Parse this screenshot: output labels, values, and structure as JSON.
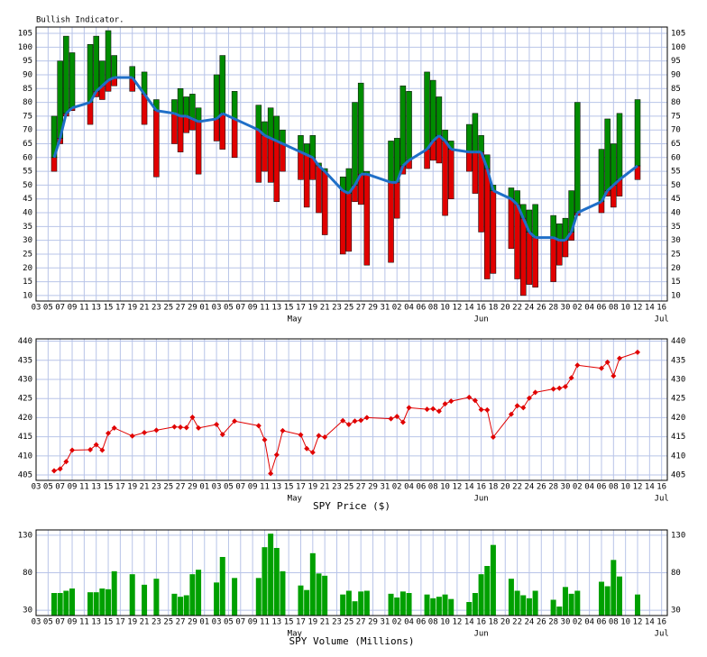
{
  "chart_data": [
    {
      "type": "range-bar",
      "title": "Bullish Indicator.",
      "categories": [
        "03",
        null,
        "05",
        null,
        "07",
        null,
        "09",
        null,
        "11",
        null,
        "13",
        null,
        "15",
        null,
        "17",
        null,
        "19",
        null,
        "21",
        null,
        "23",
        null,
        "25",
        null,
        "27",
        null,
        "29",
        null,
        "01",
        null,
        "03",
        null,
        "05",
        null,
        "07",
        null,
        "09",
        null,
        "11",
        null,
        "13",
        null,
        "15",
        null,
        "17",
        null,
        "19",
        null,
        "21",
        null,
        "23",
        null,
        "25",
        null,
        "27",
        null,
        "29",
        null,
        "31",
        null,
        "02",
        null,
        "04",
        null,
        "06",
        null,
        "08",
        null,
        "10",
        null,
        "12",
        null,
        "14",
        null,
        "16",
        null,
        "18",
        null,
        "20",
        null,
        "22",
        null,
        "24",
        null,
        "26",
        null,
        "28",
        null,
        "30",
        null,
        "02",
        null,
        "04",
        null,
        "06",
        null,
        "08",
        null,
        "10",
        null,
        "12",
        null,
        "14",
        null,
        "16"
      ],
      "month_labels": [
        "May",
        "Jun",
        "Jul"
      ],
      "low": [
        null,
        null,
        null,
        55,
        65,
        75,
        77,
        null,
        null,
        72,
        82,
        81,
        84,
        86,
        null,
        null,
        84,
        null,
        72,
        null,
        53,
        null,
        null,
        65,
        62,
        69,
        70,
        54,
        null,
        null,
        66,
        63,
        null,
        60,
        null,
        null,
        null,
        51,
        55,
        51,
        44,
        55,
        null,
        null,
        52,
        42,
        52,
        40,
        32,
        null,
        null,
        25,
        26,
        44,
        43,
        21,
        null,
        null,
        null,
        22,
        38,
        54,
        56,
        null,
        null,
        56,
        59,
        58,
        39,
        45,
        null,
        null,
        55,
        47,
        33,
        16,
        18,
        null,
        null,
        27,
        16,
        10,
        14,
        13,
        null,
        null,
        15,
        21,
        24,
        30,
        39,
        null,
        null,
        null,
        40,
        46,
        42,
        46,
        null,
        null,
        52,
        null,
        null,
        null,
        null
      ],
      "high": [
        null,
        null,
        null,
        75,
        95,
        104,
        98,
        null,
        null,
        101,
        104,
        95,
        106,
        97,
        null,
        null,
        93,
        null,
        91,
        null,
        81,
        null,
        null,
        81,
        85,
        82,
        83,
        78,
        null,
        null,
        90,
        97,
        null,
        84,
        null,
        null,
        null,
        79,
        73,
        78,
        75,
        70,
        null,
        null,
        68,
        65,
        68,
        58,
        56,
        null,
        null,
        53,
        56,
        80,
        87,
        55,
        null,
        null,
        null,
        66,
        67,
        86,
        84,
        null,
        null,
        91,
        88,
        82,
        70,
        66,
        null,
        null,
        72,
        76,
        68,
        61,
        50,
        null,
        null,
        49,
        48,
        43,
        41,
        43,
        null,
        null,
        39,
        36,
        38,
        48,
        80,
        null,
        null,
        null,
        63,
        74,
        65,
        76,
        null,
        null,
        81,
        null,
        null,
        null,
        null
      ],
      "average": [
        null,
        null,
        null,
        60,
        67,
        76,
        78,
        null,
        null,
        80,
        84,
        86,
        88,
        89,
        null,
        null,
        89,
        null,
        83,
        null,
        77,
        null,
        null,
        76,
        75,
        75,
        74,
        73,
        null,
        null,
        74,
        76,
        null,
        74,
        null,
        null,
        null,
        70,
        68,
        67,
        66,
        65,
        null,
        null,
        62,
        61,
        60,
        57,
        55,
        null,
        null,
        48,
        47,
        50,
        54,
        54,
        null,
        null,
        null,
        51,
        51,
        57,
        59,
        null,
        null,
        63,
        66,
        68,
        66,
        63,
        null,
        null,
        62,
        62,
        62,
        56,
        48,
        null,
        null,
        45,
        43,
        38,
        33,
        31,
        null,
        null,
        31,
        30,
        30,
        33,
        40,
        null,
        null,
        null,
        44,
        48,
        50,
        52,
        null,
        null,
        57,
        null,
        null,
        null,
        null
      ],
      "up_color": "#008c00",
      "down_color": "#e00000",
      "average_color": "#1f6fc8",
      "ylim": [
        8,
        107.3
      ],
      "yticks": [
        10,
        15,
        20,
        25,
        30,
        35,
        40,
        45,
        50,
        55,
        60,
        65,
        70,
        75,
        80,
        85,
        90,
        95,
        100,
        105
      ],
      "grid": true
    },
    {
      "type": "line",
      "x_label": "SPY Price ($)",
      "categories": [
        "03",
        null,
        "05",
        null,
        "07",
        null,
        "09",
        null,
        "11",
        null,
        "13",
        null,
        "15",
        null,
        "17",
        null,
        "19",
        null,
        "21",
        null,
        "23",
        null,
        "25",
        null,
        "27",
        null,
        "29",
        null,
        "01",
        null,
        "03",
        null,
        "05",
        null,
        "07",
        null,
        "09",
        null,
        "11",
        null,
        "13",
        null,
        "15",
        null,
        "17",
        null,
        "19",
        null,
        "21",
        null,
        "23",
        null,
        "25",
        null,
        "27",
        null,
        "29",
        null,
        "31",
        null,
        "02",
        null,
        "04",
        null,
        "06",
        null,
        "08",
        null,
        "10",
        null,
        "12",
        null,
        "14",
        null,
        "16",
        null,
        "18",
        null,
        "20",
        null,
        "22",
        null,
        "24",
        null,
        "26",
        null,
        "28",
        null,
        "30",
        null,
        "02",
        null,
        "04",
        null,
        "06",
        null,
        "08",
        null,
        "10",
        null,
        "12",
        null,
        "14",
        null,
        "16"
      ],
      "month_labels": [
        "May",
        "Jun",
        "Jul"
      ],
      "values": [
        null,
        null,
        null,
        406.1,
        406.6,
        408.5,
        411.5,
        null,
        null,
        411.6,
        412.9,
        411.5,
        415.9,
        417.3,
        null,
        null,
        415.2,
        null,
        416.1,
        null,
        416.7,
        null,
        null,
        417.6,
        417.5,
        417.4,
        420.1,
        417.3,
        null,
        null,
        418.2,
        415.6,
        null,
        419.1,
        null,
        null,
        null,
        417.9,
        414.2,
        405.4,
        410.3,
        416.6,
        null,
        null,
        415.5,
        411.9,
        410.9,
        415.3,
        414.9,
        null,
        null,
        419.2,
        418.2,
        419.1,
        419.3,
        420,
        null,
        null,
        null,
        419.7,
        420.3,
        418.8,
        422.6,
        null,
        null,
        422.2,
        422.3,
        421.7,
        423.6,
        424.3,
        null,
        null,
        425.3,
        424.5,
        422.1,
        422,
        414.9,
        null,
        null,
        420.9,
        423.1,
        422.6,
        425.1,
        426.6,
        null,
        null,
        427.5,
        427.7,
        428.1,
        430.4,
        433.7,
        null,
        null,
        null,
        432.9,
        434.5,
        430.9,
        435.5,
        null,
        null,
        437.1,
        null,
        null,
        null,
        null
      ],
      "color": "#e00000",
      "ylim": [
        403.6,
        440.6
      ],
      "yticks": [
        405,
        410,
        415,
        420,
        425,
        430,
        435,
        440
      ],
      "grid": true
    },
    {
      "type": "bar",
      "x_label": "SPY Volume (Millions)",
      "categories": [
        "03",
        null,
        "05",
        null,
        "07",
        null,
        "09",
        null,
        "11",
        null,
        "13",
        null,
        "15",
        null,
        "17",
        null,
        "19",
        null,
        "21",
        null,
        "23",
        null,
        "25",
        null,
        "27",
        null,
        "29",
        null,
        "01",
        null,
        "03",
        null,
        "05",
        null,
        "07",
        null,
        "09",
        null,
        "11",
        null,
        "13",
        null,
        "15",
        null,
        "17",
        null,
        "19",
        null,
        "21",
        null,
        "23",
        null,
        "25",
        null,
        "27",
        null,
        "29",
        null,
        "31",
        null,
        "02",
        null,
        "04",
        null,
        "06",
        null,
        "08",
        null,
        "10",
        null,
        "12",
        null,
        "14",
        null,
        "16",
        null,
        "18",
        null,
        "20",
        null,
        "22",
        null,
        "24",
        null,
        "26",
        null,
        "28",
        null,
        "30",
        null,
        "02",
        null,
        "04",
        null,
        "06",
        null,
        "08",
        null,
        "10",
        null,
        "12",
        null,
        "14",
        null,
        "16"
      ],
      "month_labels": [
        "May",
        "Jun",
        "Jul"
      ],
      "values": [
        null,
        null,
        null,
        53,
        53,
        56,
        59,
        null,
        null,
        54,
        54,
        59,
        58,
        82,
        null,
        null,
        78,
        null,
        64,
        null,
        72,
        null,
        null,
        52,
        48,
        50,
        78,
        84,
        null,
        null,
        67,
        101,
        null,
        73,
        null,
        null,
        null,
        73,
        114,
        132,
        113,
        82,
        null,
        null,
        63,
        57,
        106,
        79,
        76,
        null,
        null,
        51,
        56,
        42,
        55,
        56,
        null,
        null,
        null,
        52,
        47,
        55,
        53,
        null,
        null,
        51,
        46,
        48,
        51,
        45,
        null,
        null,
        41,
        53,
        78,
        89,
        117,
        null,
        null,
        72,
        56,
        50,
        46,
        56,
        null,
        null,
        44,
        35,
        61,
        52,
        56,
        null,
        null,
        null,
        68,
        62,
        97,
        75,
        null,
        null,
        51,
        null,
        null,
        null,
        null
      ],
      "color": "#00a000",
      "ylim": [
        23,
        137
      ],
      "yticks": [
        30,
        80,
        130
      ],
      "grid": true
    }
  ]
}
